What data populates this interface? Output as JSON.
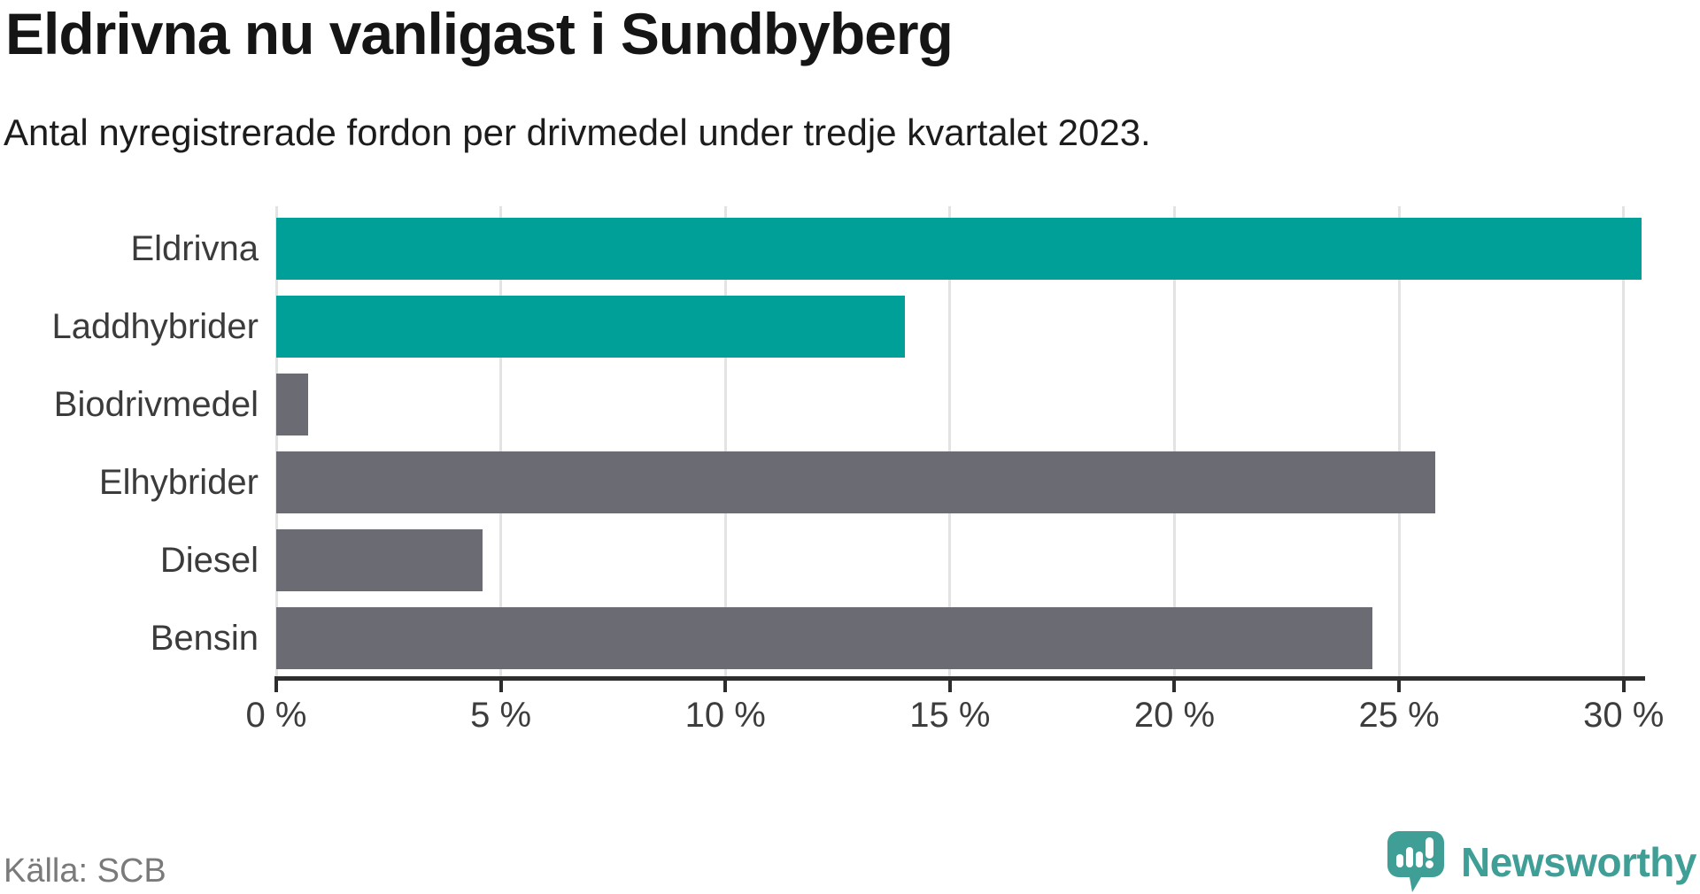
{
  "title": "Eldrivna nu vanligast i Sundbyberg",
  "subtitle": "Antal nyregistrerade fordon per drivmedel under tredje kvartalet 2023.",
  "source": "Källa: SCB",
  "brand": {
    "name": "Newsworthy",
    "color": "#3f9f97",
    "icon": "newsworthy-speech-bubble-chart-icon"
  },
  "colors": {
    "highlight_bar": "#00a099",
    "default_bar": "#6b6b74",
    "gridline": "#e3e3e3",
    "axis": "#2d2d2d",
    "label_text": "#3b3b3b"
  },
  "chart_data": {
    "type": "bar",
    "orientation": "horizontal",
    "title": "Eldrivna nu vanligast i Sundbyberg",
    "subtitle": "Antal nyregistrerade fordon per drivmedel under tredje kvartalet 2023.",
    "categories": [
      "Eldrivna",
      "Laddhybrider",
      "Biodrivmedel",
      "Elhybrider",
      "Diesel",
      "Bensin"
    ],
    "values": [
      30.4,
      14.0,
      0.7,
      25.8,
      4.6,
      24.4
    ],
    "unit": "%",
    "bar_colors": [
      "#00a099",
      "#00a099",
      "#6b6b74",
      "#6b6b74",
      "#6b6b74",
      "#6b6b74"
    ],
    "xlabel": "",
    "ylabel": "",
    "xlim": [
      0,
      30.4
    ],
    "xticks": [
      0,
      5,
      10,
      15,
      20,
      25,
      30
    ],
    "xtick_labels": [
      "0 %",
      "5 %",
      "10 %",
      "15 %",
      "20 %",
      "25 %",
      "30 %"
    ],
    "grid": true,
    "legend": false,
    "source": "Källa: SCB"
  }
}
